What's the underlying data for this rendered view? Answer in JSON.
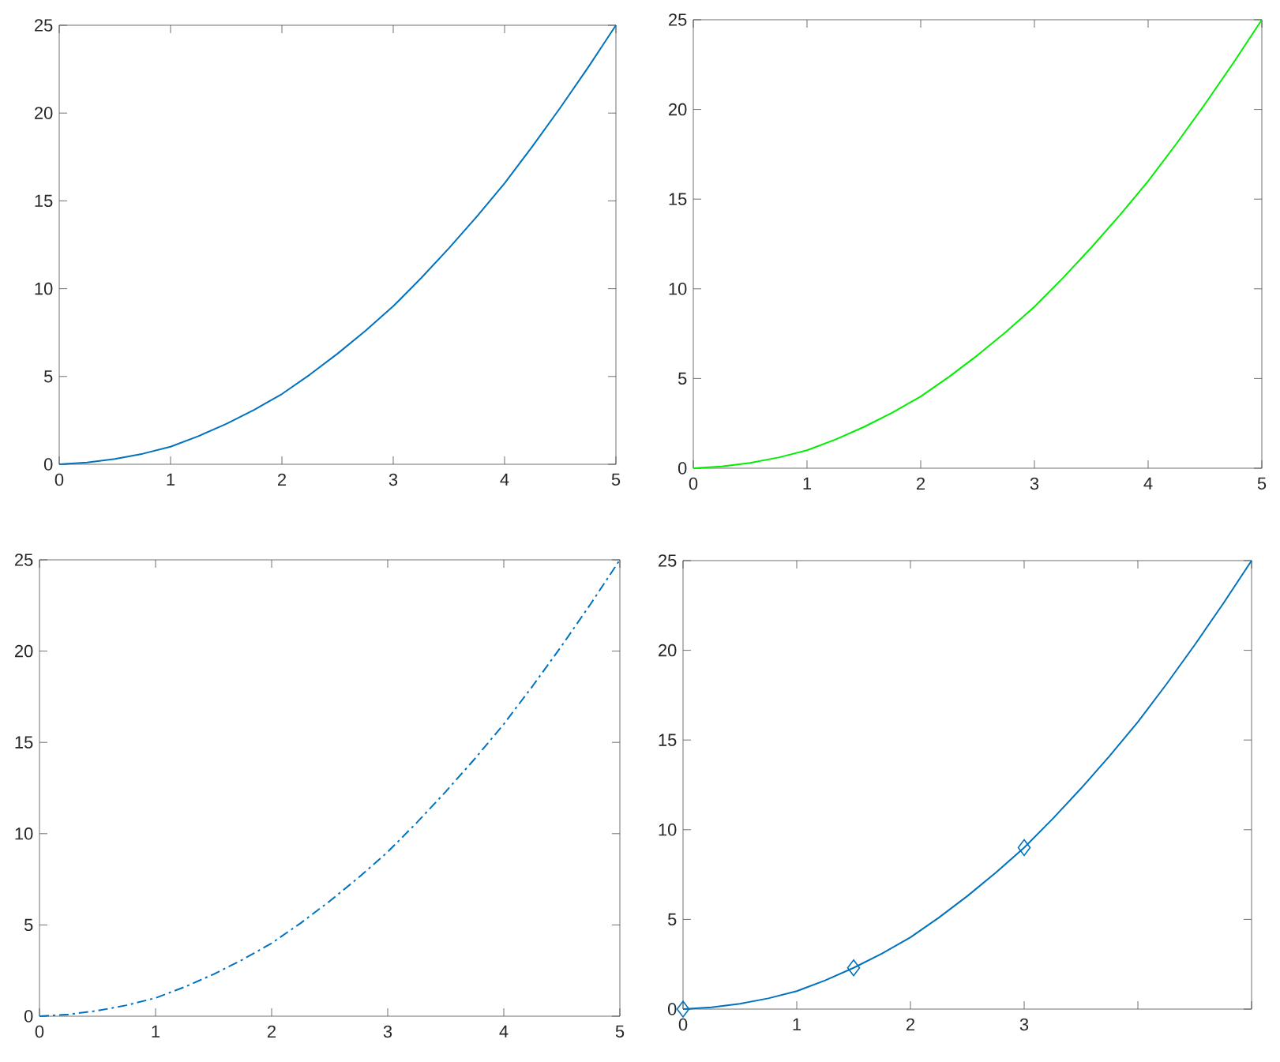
{
  "chart_data": [
    {
      "type": "line",
      "x": [
        0,
        0.25,
        0.5,
        0.75,
        1,
        1.25,
        1.5,
        1.75,
        2,
        2.25,
        2.5,
        2.75,
        3,
        3.25,
        3.5,
        3.75,
        4,
        4.25,
        4.5,
        4.75,
        5
      ],
      "xlim": [
        0,
        5
      ],
      "ylim": [
        0,
        25
      ],
      "xticks": [
        0,
        1,
        2,
        3,
        4,
        5
      ],
      "yticks": [
        0,
        5,
        10,
        15,
        20,
        25
      ],
      "series": [
        {
          "color": "#0072bd",
          "values": [
            0,
            0.1,
            0.3,
            0.6,
            1,
            1.6,
            2.3,
            3.1,
            4,
            5.1,
            6.3,
            7.6,
            9,
            10.6,
            12.3,
            14.1,
            16,
            18.1,
            20.3,
            22.6,
            25
          ]
        }
      ]
    },
    {
      "type": "line",
      "x": [
        0,
        0.25,
        0.5,
        0.75,
        1,
        1.25,
        1.5,
        1.75,
        2,
        2.25,
        2.5,
        2.75,
        3,
        3.25,
        3.5,
        3.75,
        4,
        4.25,
        4.5,
        4.75,
        5
      ],
      "xlim": [
        0,
        5
      ],
      "ylim": [
        0,
        25
      ],
      "xticks": [
        0,
        1,
        2,
        3,
        4,
        5
      ],
      "yticks": [
        0,
        5,
        10,
        15,
        20,
        25
      ],
      "series": [
        {
          "color": "#00ee00",
          "values": [
            0,
            0.1,
            0.3,
            0.6,
            1,
            1.6,
            2.3,
            3.1,
            4,
            5.1,
            6.3,
            7.6,
            9,
            10.6,
            12.3,
            14.1,
            16,
            18.1,
            20.3,
            22.6,
            25
          ]
        }
      ]
    },
    {
      "type": "line",
      "line_style": "dashed",
      "x": [
        0,
        0.25,
        0.5,
        0.75,
        1,
        1.25,
        1.5,
        1.75,
        2,
        2.25,
        2.5,
        2.75,
        3,
        3.25,
        3.5,
        3.75,
        4,
        4.25,
        4.5,
        4.75,
        5
      ],
      "xlim": [
        0,
        5
      ],
      "ylim": [
        0,
        25
      ],
      "xticks": [
        0,
        1,
        2,
        3,
        4,
        5
      ],
      "yticks": [
        0,
        5,
        10,
        15,
        20,
        25
      ],
      "series": [
        {
          "color": "#0072bd",
          "values": [
            0,
            0.1,
            0.3,
            0.6,
            1,
            1.6,
            2.3,
            3.1,
            4,
            5.1,
            6.3,
            7.6,
            9,
            10.6,
            12.3,
            14.1,
            16,
            18.1,
            20.3,
            22.6,
            25
          ]
        }
      ]
    },
    {
      "type": "line",
      "x": [
        0,
        0.25,
        0.5,
        0.75,
        1,
        1.25,
        1.5,
        1.75,
        2,
        2.25,
        2.5,
        2.75,
        3,
        3.25,
        3.5,
        3.75,
        4,
        4.25,
        4.5,
        4.75,
        5
      ],
      "xlim": [
        0,
        5
      ],
      "ylim": [
        0,
        25
      ],
      "xticks": [
        0,
        1,
        2,
        3,
        {
          "value": 4,
          "label": null
        },
        {
          "value": 5,
          "label": null
        }
      ],
      "yticks": [
        0,
        5,
        10,
        15,
        20,
        25
      ],
      "series": [
        {
          "color": "#0072bd",
          "values": [
            0,
            0.1,
            0.3,
            0.6,
            1,
            1.6,
            2.3,
            3.1,
            4,
            5.1,
            6.3,
            7.6,
            9,
            10.6,
            12.3,
            14.1,
            16,
            18.1,
            20.3,
            22.6,
            25
          ]
        },
        {
          "type": "scatter",
          "marker": "diamond",
          "color": "#0072bd",
          "x": [
            0,
            1.5,
            3
          ],
          "values": [
            0,
            2.3,
            9
          ]
        }
      ]
    }
  ]
}
